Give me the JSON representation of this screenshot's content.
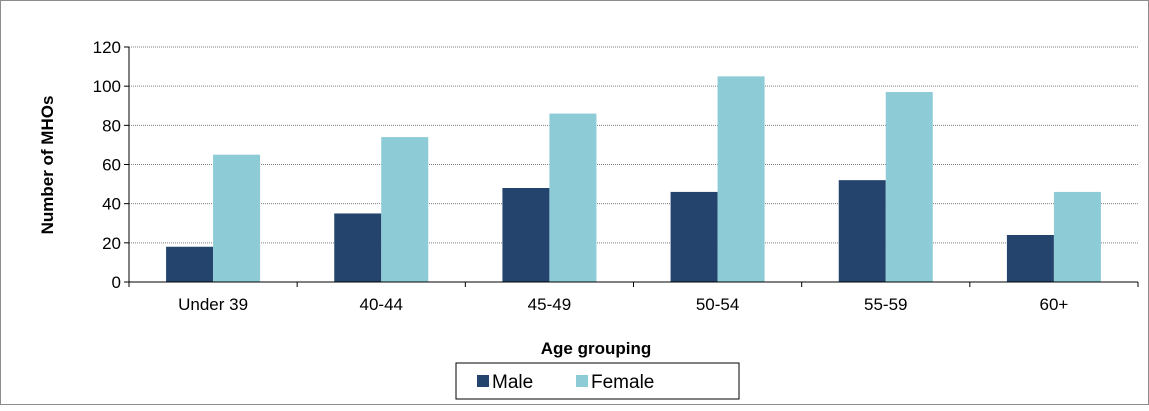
{
  "chart_data": {
    "type": "bar",
    "categories": [
      "Under 39",
      "40-44",
      "45-49",
      "50-54",
      "55-59",
      "60+"
    ],
    "series": [
      {
        "name": "Male",
        "values": [
          18,
          35,
          48,
          46,
          52,
          24
        ],
        "color": "#24446e"
      },
      {
        "name": "Female",
        "values": [
          65,
          74,
          86,
          105,
          97,
          46
        ],
        "color": "#8dcbd6"
      }
    ],
    "xlabel": "Age grouping",
    "ylabel": "Number of MHOs",
    "ylim": [
      0,
      120
    ],
    "yticks": [
      0,
      20,
      40,
      60,
      80,
      100,
      120
    ],
    "grid": true,
    "legend_position": "bottom"
  }
}
